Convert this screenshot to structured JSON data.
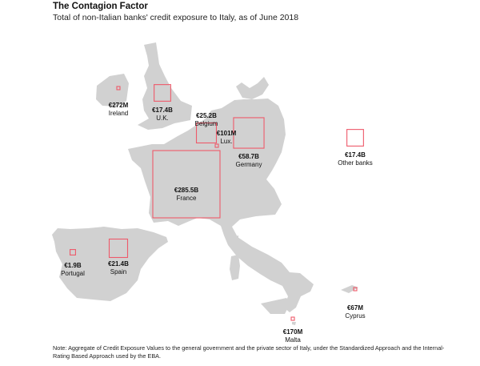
{
  "title": "The Contagion Factor",
  "subtitle": "Total of non-Italian banks' credit exposure to Italy, as of June 2018",
  "note": "Note: Aggregate of Credit Exposure Values to the general government and the private sector of Italy, under the Standardized Approach and the Internal-Rating Based Approach used by the EBA.",
  "colors": {
    "land": "#d1d1d1",
    "square": "#ee5a6a"
  },
  "chart_data": {
    "type": "proportional-symbol map",
    "unit": "EUR",
    "points": [
      {
        "name": "Ireland",
        "label": "€272M",
        "value_eur_millions": 272
      },
      {
        "name": "U.K.",
        "label": "€17.4B",
        "value_eur_millions": 17400
      },
      {
        "name": "Belgium",
        "label": "€25.2B",
        "value_eur_millions": 25200
      },
      {
        "name": "Lux.",
        "label": "€101M",
        "value_eur_millions": 101
      },
      {
        "name": "Germany",
        "label": "€58.7B",
        "value_eur_millions": 58700
      },
      {
        "name": "Other banks",
        "label": "€17.4B",
        "value_eur_millions": 17400
      },
      {
        "name": "France",
        "label": "€285.5B",
        "value_eur_millions": 285500
      },
      {
        "name": "Portugal",
        "label": "€1.9B",
        "value_eur_millions": 1900
      },
      {
        "name": "Spain",
        "label": "€21.4B",
        "value_eur_millions": 21400
      },
      {
        "name": "Cyprus",
        "label": "€67M",
        "value_eur_millions": 67
      },
      {
        "name": "Malta",
        "label": "€170M",
        "value_eur_millions": 170
      }
    ]
  }
}
